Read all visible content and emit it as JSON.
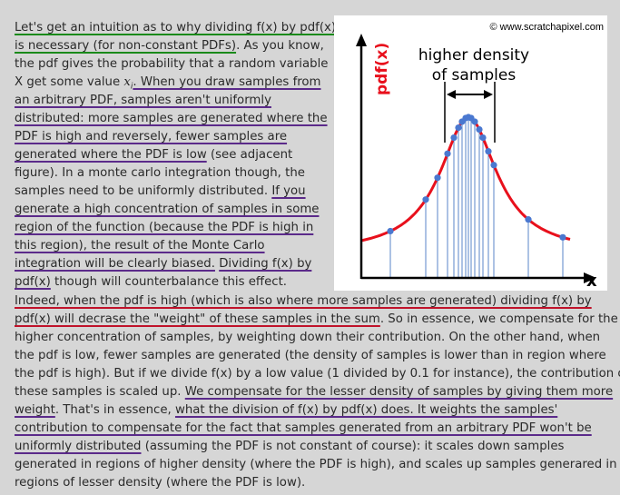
{
  "figure": {
    "copyright": "© www.scratchapixel.com",
    "y_label": "pdf(x)",
    "x_label": "x",
    "annotation_line1": "higher density",
    "annotation_line2": "of samples",
    "colors": {
      "curve": "#e8101c",
      "sample": "#4a78d0",
      "axis": "#000000",
      "annotation": "#000000"
    }
  },
  "column_text": [
    [
      {
        "t": "Let's get an intuition as to why dividing f(x) by pdf(x)",
        "u": "g"
      }
    ],
    [
      {
        "t": "is necessary (for non-constant PDFs)",
        "u": "g"
      },
      {
        "t": ". As you know,",
        "u": ""
      }
    ],
    [
      {
        "t": "the pdf gives the probability that a random variable",
        "u": ""
      }
    ],
    [
      {
        "t": "X get some value ",
        "u": ""
      },
      {
        "t": "x",
        "u": "",
        "i": true
      },
      {
        "t": "i",
        "u": "",
        "sub": true
      },
      {
        "t": ". When you draw samples from",
        "u": "p"
      }
    ],
    [
      {
        "t": "an arbitrary PDF, samples aren't uniformly",
        "u": "p"
      }
    ],
    [
      {
        "t": "distributed: more samples are generated where the",
        "u": "p"
      }
    ],
    [
      {
        "t": "PDF is high and reversely, fewer samples are",
        "u": "p"
      }
    ],
    [
      {
        "t": "generated where the PDF is low",
        "u": "p"
      },
      {
        "t": " (see adjacent",
        "u": ""
      }
    ],
    [
      {
        "t": "figure). In a monte carlo integration though, the",
        "u": ""
      }
    ],
    [
      {
        "t": "samples need to be uniformly distributed. ",
        "u": ""
      },
      {
        "t": "If you",
        "u": "p"
      }
    ],
    [
      {
        "t": "generate a high concentration of samples in some",
        "u": "p"
      }
    ],
    [
      {
        "t": "region of the function (because the PDF is high in",
        "u": "p"
      }
    ],
    [
      {
        "t": "this region), the result of the Monte Carlo",
        "u": "p"
      }
    ],
    [
      {
        "t": "integration will be clearly biased.",
        "u": "p"
      },
      {
        "t": " ",
        "u": ""
      },
      {
        "t": "Dividing f(x) by",
        "u": "p"
      }
    ],
    [
      {
        "t": "pdf(x)",
        "u": "p"
      },
      {
        "t": " though will counterbalance this effect.",
        "u": ""
      }
    ]
  ],
  "full_text": [
    [
      {
        "t": "Indeed, when the pdf is high (which is also where more samples are generated) dividing f(x) by",
        "u": "r"
      }
    ],
    [
      {
        "t": "pdf(x) will decrase the \"weight\" of these samples in the sum",
        "u": "r"
      },
      {
        "t": ". So in essence, we compensate for the",
        "u": ""
      }
    ],
    [
      {
        "t": "higher concentration of samples, by weighting down their contribution. On the other hand, when",
        "u": ""
      }
    ],
    [
      {
        "t": "the pdf is low, fewer samples are generated (the density of samples is lower than in region where",
        "u": ""
      }
    ],
    [
      {
        "t": "the pdf is high). But if we divide f(x) by a low value (1 divided by 0.1 for instance), the contribution of",
        "u": ""
      }
    ],
    [
      {
        "t": "these samples is scaled up. ",
        "u": ""
      },
      {
        "t": "We compensate for the lesser density of samples by giving them more",
        "u": "p"
      }
    ],
    [
      {
        "t": "weight",
        "u": "p"
      },
      {
        "t": ". That's in essence, ",
        "u": ""
      },
      {
        "t": "what the division of f(x) by pdf(x) does. It weights the samples'",
        "u": "p"
      }
    ],
    [
      {
        "t": "contribution to compensate for the fact that samples generated from an arbitrary PDF won't be",
        "u": "p"
      }
    ],
    [
      {
        "t": "uniformly distributed",
        "u": "p"
      },
      {
        "t": " (assuming the PDF is not constant of course): it scales down samples",
        "u": ""
      }
    ],
    [
      {
        "t": "generated in regions of higher density (where the PDF is high), and scales up samples generared in",
        "u": ""
      }
    ],
    [
      {
        "t": "regions of lesser density (where the PDF is low).",
        "u": ""
      }
    ]
  ]
}
